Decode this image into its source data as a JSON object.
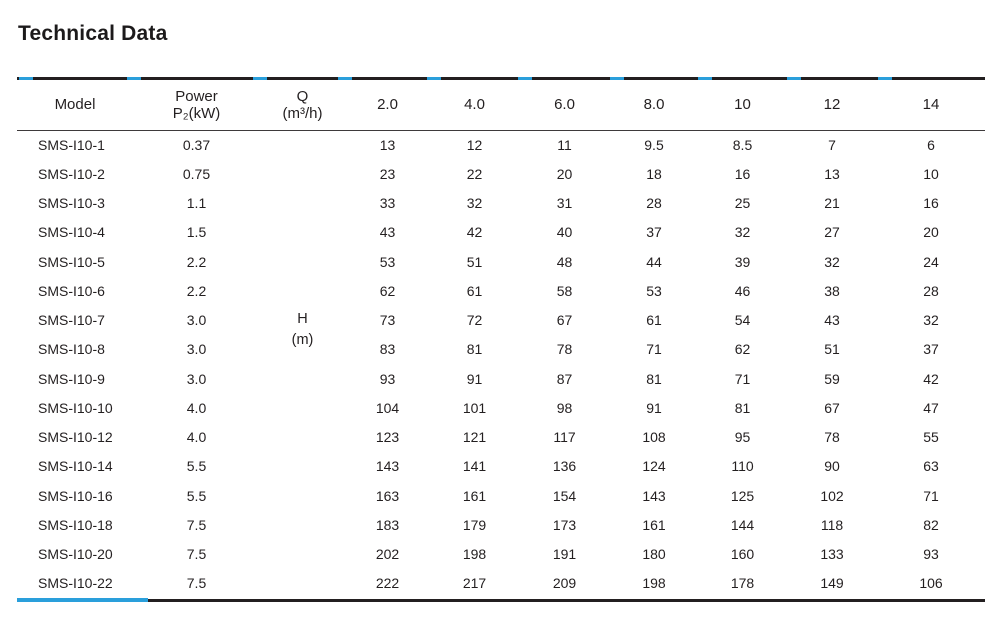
{
  "title": "Technical Data",
  "colors": {
    "accent_blue": "#2a9fdb",
    "rule_dark": "#231f20",
    "text": "#231f20"
  },
  "table": {
    "header": {
      "model": "Model",
      "power": [
        "Power",
        "P₂(kW)"
      ],
      "flow": [
        "Q",
        "(m³/h)"
      ],
      "flow_rates": [
        "2.0",
        "4.0",
        "6.0",
        "8.0",
        "10",
        "12",
        "14"
      ]
    },
    "head_unit": [
      "H",
      "(m)"
    ],
    "rows": [
      {
        "model": "SMS-I10-1",
        "power": "0.37",
        "values": [
          "13",
          "12",
          "11",
          "9.5",
          "8.5",
          "7",
          "6"
        ]
      },
      {
        "model": "SMS-I10-2",
        "power": "0.75",
        "values": [
          "23",
          "22",
          "20",
          "18",
          "16",
          "13",
          "10"
        ]
      },
      {
        "model": "SMS-I10-3",
        "power": "1.1",
        "values": [
          "33",
          "32",
          "31",
          "28",
          "25",
          "21",
          "16"
        ]
      },
      {
        "model": "SMS-I10-4",
        "power": "1.5",
        "values": [
          "43",
          "42",
          "40",
          "37",
          "32",
          "27",
          "20"
        ]
      },
      {
        "model": "SMS-I10-5",
        "power": "2.2",
        "values": [
          "53",
          "51",
          "48",
          "44",
          "39",
          "32",
          "24"
        ]
      },
      {
        "model": "SMS-I10-6",
        "power": "2.2",
        "values": [
          "62",
          "61",
          "58",
          "53",
          "46",
          "38",
          "28"
        ]
      },
      {
        "model": "SMS-I10-7",
        "power": "3.0",
        "values": [
          "73",
          "72",
          "67",
          "61",
          "54",
          "43",
          "32"
        ]
      },
      {
        "model": "SMS-I10-8",
        "power": "3.0",
        "values": [
          "83",
          "81",
          "78",
          "71",
          "62",
          "51",
          "37"
        ]
      },
      {
        "model": "SMS-I10-9",
        "power": "3.0",
        "values": [
          "93",
          "91",
          "87",
          "81",
          "71",
          "59",
          "42"
        ]
      },
      {
        "model": "SMS-I10-10",
        "power": "4.0",
        "values": [
          "104",
          "101",
          "98",
          "91",
          "81",
          "67",
          "47"
        ]
      },
      {
        "model": "SMS-I10-12",
        "power": "4.0",
        "values": [
          "123",
          "121",
          "117",
          "108",
          "95",
          "78",
          "55"
        ]
      },
      {
        "model": "SMS-I10-14",
        "power": "5.5",
        "values": [
          "143",
          "141",
          "136",
          "124",
          "110",
          "90",
          "63"
        ]
      },
      {
        "model": "SMS-I10-16",
        "power": "5.5",
        "values": [
          "163",
          "161",
          "154",
          "143",
          "125",
          "102",
          "71"
        ]
      },
      {
        "model": "SMS-I10-18",
        "power": "7.5",
        "values": [
          "183",
          "179",
          "173",
          "161",
          "144",
          "118",
          "82"
        ]
      },
      {
        "model": "SMS-I10-20",
        "power": "7.5",
        "values": [
          "202",
          "198",
          "191",
          "180",
          "160",
          "133",
          "93"
        ]
      },
      {
        "model": "SMS-I10-22",
        "power": "7.5",
        "values": [
          "222",
          "217",
          "209",
          "198",
          "178",
          "149",
          "106"
        ]
      }
    ]
  }
}
